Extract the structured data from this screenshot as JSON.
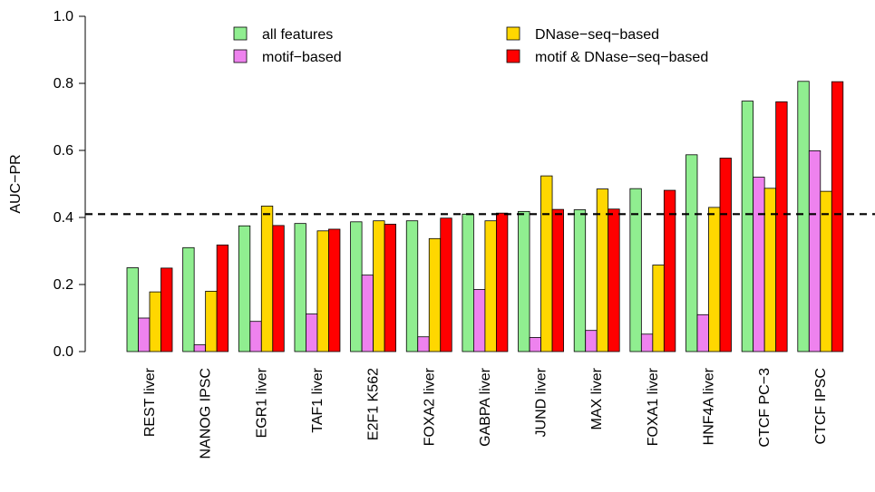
{
  "chart_data": {
    "type": "bar",
    "title": "",
    "xlabel": "",
    "ylabel": "AUC−PR",
    "ylim": [
      0,
      1.0
    ],
    "yticks": [
      "0.0",
      "0.2",
      "0.4",
      "0.6",
      "0.8",
      "1.0"
    ],
    "reference_line": 0.41,
    "grid": false,
    "legend_position": "top",
    "categories": [
      "REST liver",
      "NANOG IPSC",
      "EGR1 liver",
      "TAF1 liver",
      "E2F1 K562",
      "FOXA2 liver",
      "GABPA liver",
      "JUND liver",
      "MAX liver",
      "FOXA1 liver",
      "HNF4A liver",
      "CTCF PC−3",
      "CTCF IPSC"
    ],
    "series": [
      {
        "name": "all features",
        "color": "#90EE90",
        "values": [
          0.25,
          0.31,
          0.375,
          0.382,
          0.387,
          0.39,
          0.41,
          0.418,
          0.423,
          0.486,
          0.587,
          0.747,
          0.806
        ]
      },
      {
        "name": "motif−based",
        "color": "#EE82EE",
        "values": [
          0.1,
          0.02,
          0.09,
          0.112,
          0.228,
          0.044,
          0.185,
          0.042,
          0.063,
          0.052,
          0.11,
          0.52,
          0.599
        ]
      },
      {
        "name": "DNase−seq−based",
        "color": "#FFD700",
        "values": [
          0.178,
          0.18,
          0.434,
          0.36,
          0.39,
          0.337,
          0.39,
          0.524,
          0.485,
          0.258,
          0.43,
          0.487,
          0.478
        ]
      },
      {
        "name": "motif & DNase−seq−based",
        "color": "#FF0000",
        "values": [
          0.249,
          0.318,
          0.376,
          0.365,
          0.38,
          0.398,
          0.413,
          0.424,
          0.425,
          0.481,
          0.577,
          0.745,
          0.805
        ]
      }
    ]
  }
}
